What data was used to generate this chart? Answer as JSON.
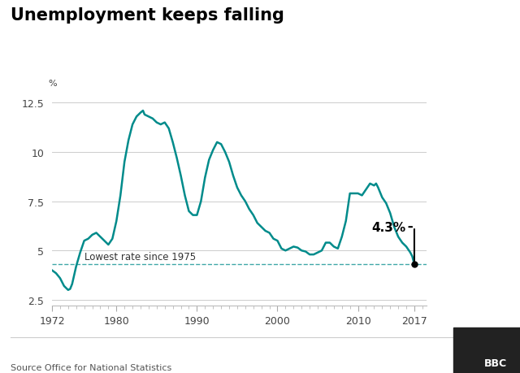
{
  "title": "Unemployment keeps falling",
  "ylabel": "%",
  "source": "Source Office for National Statistics",
  "bbc_label": "BBC",
  "line_color": "#008b8b",
  "dashed_line_color": "#008b8b",
  "dashed_line_y": 4.3,
  "annotation_text": "4.3%",
  "annotation_label": "Lowest rate since 1975",
  "dot_x": 2017,
  "dot_y": 4.3,
  "xlim": [
    1972,
    2018.5
  ],
  "ylim": [
    2.2,
    13.2
  ],
  "yticks": [
    2.5,
    5,
    7.5,
    10,
    12.5
  ],
  "ytick_labels": [
    "2.5",
    "5",
    "7.5",
    "10",
    "12.5"
  ],
  "xticks": [
    1972,
    1980,
    1990,
    2000,
    2010,
    2017
  ],
  "background_color": "#ffffff",
  "data": [
    [
      1972.0,
      4.0
    ],
    [
      1972.5,
      3.85
    ],
    [
      1973.0,
      3.6
    ],
    [
      1973.5,
      3.2
    ],
    [
      1974.0,
      3.0
    ],
    [
      1974.25,
      3.05
    ],
    [
      1974.5,
      3.3
    ],
    [
      1975.0,
      4.2
    ],
    [
      1975.5,
      4.9
    ],
    [
      1976.0,
      5.5
    ],
    [
      1976.5,
      5.6
    ],
    [
      1977.0,
      5.8
    ],
    [
      1977.5,
      5.9
    ],
    [
      1978.0,
      5.7
    ],
    [
      1978.5,
      5.5
    ],
    [
      1979.0,
      5.3
    ],
    [
      1979.5,
      5.6
    ],
    [
      1980.0,
      6.5
    ],
    [
      1980.5,
      7.8
    ],
    [
      1981.0,
      9.5
    ],
    [
      1981.5,
      10.6
    ],
    [
      1982.0,
      11.4
    ],
    [
      1982.5,
      11.8
    ],
    [
      1983.0,
      12.0
    ],
    [
      1983.3,
      12.1
    ],
    [
      1983.5,
      11.9
    ],
    [
      1984.0,
      11.8
    ],
    [
      1984.5,
      11.7
    ],
    [
      1985.0,
      11.5
    ],
    [
      1985.5,
      11.4
    ],
    [
      1986.0,
      11.5
    ],
    [
      1986.5,
      11.2
    ],
    [
      1987.0,
      10.5
    ],
    [
      1987.5,
      9.7
    ],
    [
      1988.0,
      8.8
    ],
    [
      1988.5,
      7.8
    ],
    [
      1989.0,
      7.0
    ],
    [
      1989.5,
      6.8
    ],
    [
      1990.0,
      6.8
    ],
    [
      1990.5,
      7.5
    ],
    [
      1991.0,
      8.7
    ],
    [
      1991.5,
      9.6
    ],
    [
      1992.0,
      10.1
    ],
    [
      1992.5,
      10.5
    ],
    [
      1993.0,
      10.4
    ],
    [
      1993.5,
      10.0
    ],
    [
      1994.0,
      9.5
    ],
    [
      1994.5,
      8.8
    ],
    [
      1995.0,
      8.2
    ],
    [
      1995.5,
      7.8
    ],
    [
      1996.0,
      7.5
    ],
    [
      1996.5,
      7.1
    ],
    [
      1997.0,
      6.8
    ],
    [
      1997.5,
      6.4
    ],
    [
      1998.0,
      6.2
    ],
    [
      1998.5,
      6.0
    ],
    [
      1999.0,
      5.9
    ],
    [
      1999.5,
      5.6
    ],
    [
      2000.0,
      5.5
    ],
    [
      2000.5,
      5.1
    ],
    [
      2001.0,
      5.0
    ],
    [
      2001.5,
      5.1
    ],
    [
      2002.0,
      5.2
    ],
    [
      2002.5,
      5.15
    ],
    [
      2003.0,
      5.0
    ],
    [
      2003.5,
      4.95
    ],
    [
      2004.0,
      4.8
    ],
    [
      2004.5,
      4.8
    ],
    [
      2005.0,
      4.9
    ],
    [
      2005.5,
      5.0
    ],
    [
      2006.0,
      5.4
    ],
    [
      2006.5,
      5.4
    ],
    [
      2007.0,
      5.2
    ],
    [
      2007.5,
      5.1
    ],
    [
      2008.0,
      5.7
    ],
    [
      2008.5,
      6.5
    ],
    [
      2009.0,
      7.9
    ],
    [
      2009.5,
      7.9
    ],
    [
      2010.0,
      7.9
    ],
    [
      2010.5,
      7.8
    ],
    [
      2011.0,
      8.1
    ],
    [
      2011.5,
      8.4
    ],
    [
      2012.0,
      8.3
    ],
    [
      2012.25,
      8.4
    ],
    [
      2012.5,
      8.2
    ],
    [
      2013.0,
      7.7
    ],
    [
      2013.5,
      7.4
    ],
    [
      2014.0,
      6.9
    ],
    [
      2014.5,
      6.2
    ],
    [
      2015.0,
      5.7
    ],
    [
      2015.5,
      5.4
    ],
    [
      2016.0,
      5.2
    ],
    [
      2016.5,
      4.9
    ],
    [
      2016.75,
      4.7
    ],
    [
      2017.0,
      4.3
    ]
  ]
}
